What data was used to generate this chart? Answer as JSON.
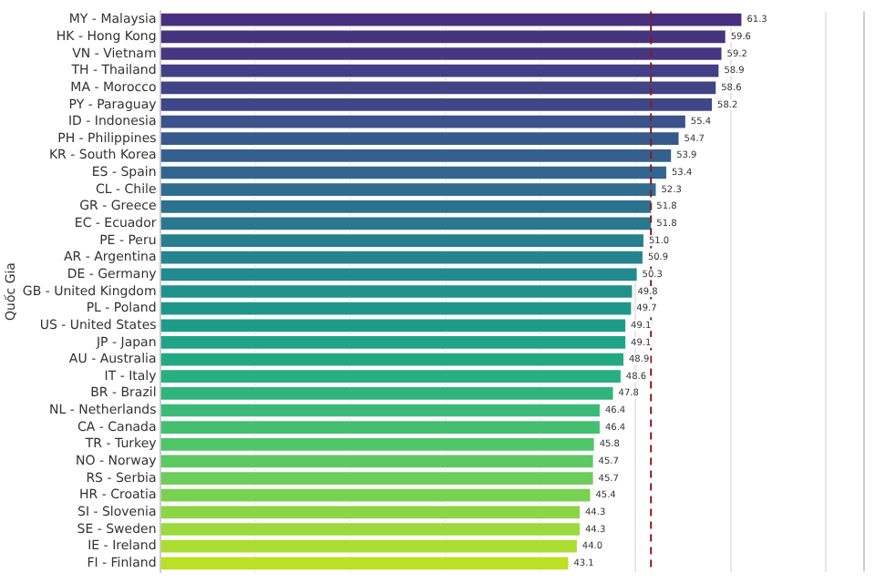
{
  "chart_data": {
    "type": "bar",
    "orientation": "horizontal",
    "ylabel": "Quốc Gia",
    "categories": [
      "MY - Malaysia",
      "HK - Hong Kong",
      "VN - Vietnam",
      "TH - Thailand",
      "MA - Morocco",
      "PY - Paraguay",
      "ID - Indonesia",
      "PH - Philippines",
      "KR - South Korea",
      "ES - Spain",
      "CL - Chile",
      "GR - Greece",
      "EC - Ecuador",
      "PE - Peru",
      "AR - Argentina",
      "DE - Germany",
      "GB - United Kingdom",
      "PL - Poland",
      "US - United States",
      "JP - Japan",
      "AU - Australia",
      "IT - Italy",
      "BR - Brazil",
      "NL - Netherlands",
      "CA - Canada",
      "TR - Turkey",
      "NO - Norway",
      "RS - Serbia",
      "HR - Croatia",
      "SI - Slovenia",
      "SE - Sweden",
      "IE - Ireland",
      "FI - Finland"
    ],
    "values": [
      61.3,
      59.6,
      59.2,
      58.9,
      58.6,
      58.2,
      55.4,
      54.7,
      53.9,
      53.4,
      52.3,
      51.8,
      51.8,
      51.0,
      50.9,
      50.3,
      49.8,
      49.7,
      49.1,
      49.1,
      48.9,
      48.6,
      47.8,
      46.4,
      46.4,
      45.8,
      45.7,
      45.7,
      45.4,
      44.3,
      44.3,
      44.0,
      43.1
    ],
    "colors": [
      "#472f7d",
      "#46337e",
      "#453781",
      "#433e85",
      "#414487",
      "#3f4788",
      "#3b528b",
      "#38598c",
      "#355f8d",
      "#32658e",
      "#2f6c8e",
      "#2c728e",
      "#2a788e",
      "#277e8e",
      "#25848e",
      "#238a8d",
      "#21918c",
      "#1f968b",
      "#1e9c89",
      "#20a386",
      "#22a884",
      "#28ae80",
      "#2fb47c",
      "#3aba76",
      "#44bf70",
      "#51c56a",
      "#5ec962",
      "#6ccd5a",
      "#7ad151",
      "#8bd646",
      "#9bd93c",
      "#acdc31",
      "#bddf26"
    ],
    "value_labels": [
      "61.3",
      "59.6",
      "59.2",
      "58.9",
      "58.6",
      "58.2",
      "55.4",
      "54.7",
      "53.9",
      "53.4",
      "52.3",
      "51.8",
      "51.8",
      "51.0",
      "50.9",
      "50.3",
      "49.8",
      "49.7",
      "49.1",
      "49.1",
      "48.9",
      "48.6",
      "47.8",
      "46.4",
      "46.4",
      "45.8",
      "45.7",
      "45.7",
      "45.4",
      "44.3",
      "44.3",
      "44.0",
      "43.1"
    ],
    "xlim": [
      0,
      74
    ],
    "xticks": [
      {
        "value": 0,
        "label": null
      },
      {
        "value": 10,
        "label": null
      },
      {
        "value": 20,
        "label": null
      },
      {
        "value": 30,
        "label": null
      },
      {
        "value": 40,
        "label": null
      },
      {
        "value": 50,
        "label": null
      },
      {
        "value": 60,
        "label": null
      },
      {
        "value": 70,
        "label": null
      }
    ],
    "grid": "x",
    "tick_labels": "y",
    "legend": false,
    "ref_lines": [
      {
        "axis": "x",
        "value": 51.6,
        "color": "#8b1a1a",
        "line_style": "dashed"
      }
    ]
  }
}
